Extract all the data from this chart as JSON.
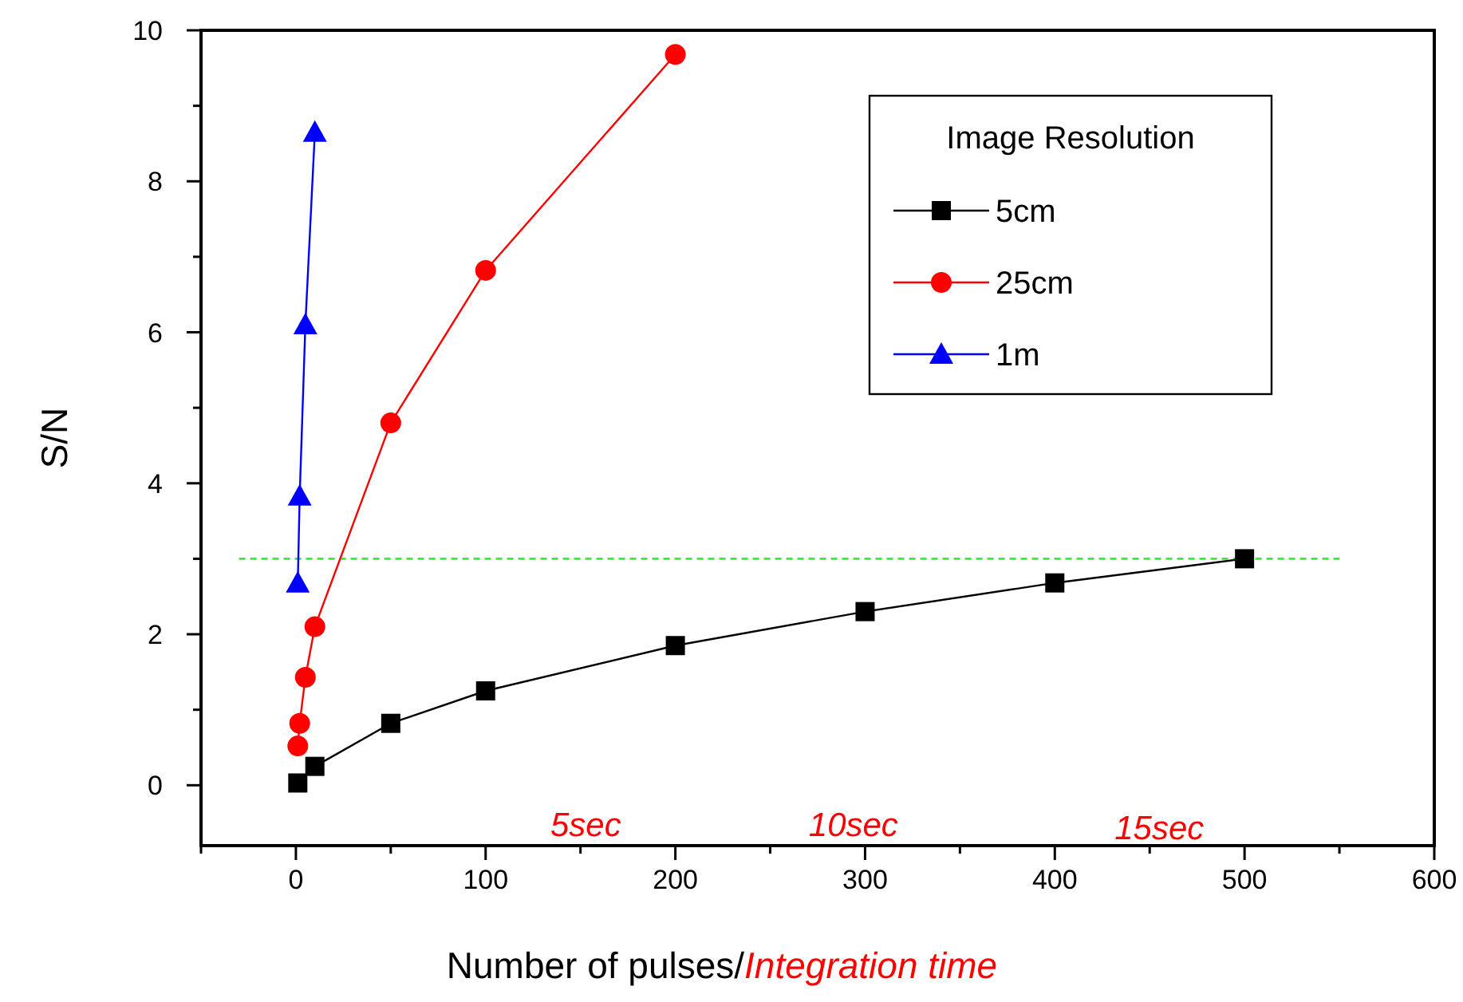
{
  "chart_data": {
    "type": "line",
    "xlabel": "Number of pulses/Integration time",
    "ylabel": "S/N",
    "legend_title": "Image Resolution",
    "legend": "top right",
    "xlim": [
      -50,
      600
    ],
    "ylim": [
      -0.8,
      10
    ],
    "xticks": [
      {
        "value": -50,
        "label": null
      },
      0,
      {
        "value": 50,
        "label": null
      },
      100,
      {
        "value": 150,
        "label": null
      },
      200,
      {
        "value": 250,
        "label": null
      },
      300,
      {
        "value": 350,
        "label": null
      },
      400,
      {
        "value": 450,
        "label": null
      },
      500,
      {
        "value": 550,
        "label": null
      },
      600
    ],
    "yticks": [
      0,
      {
        "value": 1,
        "label": null
      },
      2,
      {
        "value": 3,
        "label": null
      },
      4,
      {
        "value": 5,
        "label": null
      },
      6,
      {
        "value": 7,
        "label": null
      },
      8,
      {
        "value": 9,
        "label": null
      },
      10
    ],
    "series": [
      {
        "name": "5cm",
        "color": "#000000",
        "marker": "square",
        "x": [
          1,
          10,
          50,
          100,
          200,
          300,
          400,
          500
        ],
        "values": [
          0.03,
          0.25,
          0.82,
          1.25,
          1.85,
          2.3,
          2.68,
          3.0
        ]
      },
      {
        "name": "25cm",
        "color": "#ff0000",
        "marker": "circle",
        "x": [
          1,
          2,
          5,
          10,
          50,
          100,
          200
        ],
        "values": [
          0.52,
          0.82,
          1.43,
          2.1,
          4.8,
          6.82,
          9.68
        ]
      },
      {
        "name": "1m",
        "color": "#0000ff",
        "marker": "triangle",
        "x": [
          1,
          2,
          5,
          10
        ],
        "values": [
          2.68,
          3.83,
          6.1,
          8.65
        ]
      }
    ],
    "ref_lines": [
      {
        "axis": "y",
        "value": 3,
        "color": "#33ee33",
        "line_style": "dashed"
      }
    ],
    "annotations": [
      "5sec",
      "10sec",
      "15sec"
    ]
  }
}
